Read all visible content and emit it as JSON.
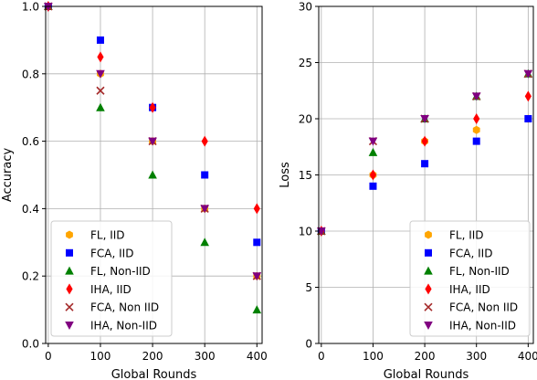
{
  "chart_data": [
    {
      "type": "scatter",
      "title": "",
      "xlabel": "Global Rounds",
      "ylabel": "Accuracy",
      "xlim": [
        -5,
        410
      ],
      "ylim": [
        0,
        1.0
      ],
      "xticks": [
        0,
        100,
        200,
        300,
        400
      ],
      "xtick_labels": [
        "0",
        "100",
        "200",
        "300",
        "400"
      ],
      "yticks": [
        0,
        0.2,
        0.4,
        0.6,
        0.8,
        1.0
      ],
      "ytick_labels": [
        "0.0",
        "0.2",
        "0.4",
        "0.6",
        "0.8",
        "1.0"
      ],
      "grid": true,
      "legend_position": "lower-left",
      "series": [
        {
          "name": "FL, IID",
          "marker": "hexagon",
          "color": "#ffa500",
          "points": [
            [
              0,
              1.0
            ],
            [
              100,
              0.8
            ],
            [
              200,
              0.6
            ],
            [
              300,
              0.4
            ],
            [
              400,
              0.2
            ]
          ]
        },
        {
          "name": "FCA, IID",
          "marker": "square",
          "color": "#0000ff",
          "points": [
            [
              0,
              1.0
            ],
            [
              100,
              0.9
            ],
            [
              200,
              0.7
            ],
            [
              300,
              0.5
            ],
            [
              400,
              0.3
            ]
          ]
        },
        {
          "name": "FL, Non-IID",
          "marker": "triangle-up",
          "color": "#008000",
          "points": [
            [
              0,
              1.0
            ],
            [
              100,
              0.7
            ],
            [
              200,
              0.5
            ],
            [
              300,
              0.3
            ],
            [
              400,
              0.1
            ]
          ]
        },
        {
          "name": "IHA, IID",
          "marker": "thin-diamond",
          "color": "#ff0000",
          "points": [
            [
              0,
              1.0
            ],
            [
              100,
              0.85
            ],
            [
              200,
              0.7
            ],
            [
              300,
              0.6
            ],
            [
              400,
              0.4
            ]
          ]
        },
        {
          "name": "FCA, Non IID",
          "marker": "x",
          "color": "#a52a2a",
          "points": [
            [
              0,
              1.0
            ],
            [
              100,
              0.75
            ],
            [
              200,
              0.6
            ],
            [
              300,
              0.4
            ],
            [
              400,
              0.2
            ]
          ]
        },
        {
          "name": "IHA, Non-IID",
          "marker": "triangle-down",
          "color": "#800080",
          "points": [
            [
              0,
              1.0
            ],
            [
              100,
              0.8
            ],
            [
              200,
              0.6
            ],
            [
              300,
              0.4
            ],
            [
              400,
              0.2
            ]
          ]
        }
      ]
    },
    {
      "type": "scatter",
      "title": "",
      "xlabel": "Global Rounds",
      "ylabel": "Loss",
      "xlim": [
        -5,
        410
      ],
      "ylim": [
        0,
        30
      ],
      "xticks": [
        0,
        100,
        200,
        300,
        400
      ],
      "xtick_labels": [
        "0",
        "100",
        "200",
        "300",
        "400"
      ],
      "yticks": [
        0,
        5,
        10,
        15,
        20,
        25,
        30
      ],
      "ytick_labels": [
        "0",
        "5",
        "10",
        "15",
        "20",
        "25",
        "30"
      ],
      "grid": true,
      "legend_position": "lower-right",
      "series": [
        {
          "name": "FL, IID",
          "marker": "hexagon",
          "color": "#ffa500",
          "points": [
            [
              0,
              10
            ],
            [
              100,
              15
            ],
            [
              200,
              18
            ],
            [
              300,
              19
            ],
            [
              400,
              20
            ]
          ]
        },
        {
          "name": "FCA, IID",
          "marker": "square",
          "color": "#0000ff",
          "points": [
            [
              0,
              10
            ],
            [
              100,
              14
            ],
            [
              200,
              16
            ],
            [
              300,
              18
            ],
            [
              400,
              20
            ]
          ]
        },
        {
          "name": "FL, Non-IID",
          "marker": "triangle-up",
          "color": "#008000",
          "points": [
            [
              0,
              10
            ],
            [
              100,
              17
            ],
            [
              200,
              20
            ],
            [
              300,
              22
            ],
            [
              400,
              24
            ]
          ]
        },
        {
          "name": "IHA, IID",
          "marker": "thin-diamond",
          "color": "#ff0000",
          "points": [
            [
              0,
              10
            ],
            [
              100,
              15
            ],
            [
              200,
              18
            ],
            [
              300,
              20
            ],
            [
              400,
              22
            ]
          ]
        },
        {
          "name": "FCA, Non IID",
          "marker": "x",
          "color": "#a52a2a",
          "points": [
            [
              0,
              10
            ],
            [
              100,
              18
            ],
            [
              200,
              20
            ],
            [
              300,
              22
            ],
            [
              400,
              24
            ]
          ]
        },
        {
          "name": "IHA, Non-IID",
          "marker": "triangle-down",
          "color": "#800080",
          "points": [
            [
              0,
              10
            ],
            [
              100,
              18
            ],
            [
              200,
              20
            ],
            [
              300,
              22
            ],
            [
              400,
              24
            ]
          ]
        }
      ]
    }
  ]
}
